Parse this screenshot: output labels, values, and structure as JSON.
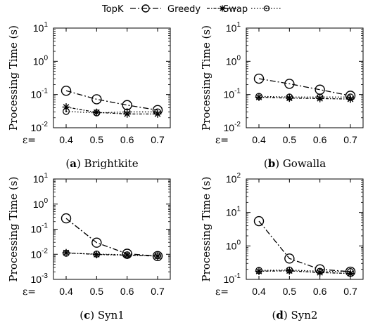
{
  "legend": [
    {
      "name": "TopK",
      "marker": "circle-icon",
      "dash": "dashdot"
    },
    {
      "name": "Greedy",
      "marker": "asterisk-icon",
      "dash": "dotted-dash"
    },
    {
      "name": "Swap",
      "marker": "circle-dot-icon",
      "dash": "dotted"
    }
  ],
  "colors": {
    "line": "#000000",
    "frame": "#000000",
    "grid": "#c8c8c8"
  },
  "chart_data": [
    {
      "type": "line",
      "label": "a",
      "caption": "Brightkite",
      "ylabel": "Processing Time (s)",
      "xlabel": "ε=",
      "categories": [
        "0.4",
        "0.5",
        "0.6",
        "0.7"
      ],
      "yscale": "log",
      "ylim": [
        0.01,
        10
      ],
      "ytick_exponents": [
        "-2",
        "-1",
        "0",
        "1"
      ],
      "series": [
        {
          "name": "TopK",
          "values": [
            0.13,
            0.072,
            0.048,
            0.034
          ]
        },
        {
          "name": "Greedy",
          "values": [
            0.042,
            0.029,
            0.026,
            0.026
          ]
        },
        {
          "name": "Swap",
          "values": [
            0.031,
            0.028,
            0.03,
            0.03
          ]
        }
      ]
    },
    {
      "type": "line",
      "label": "b",
      "caption": "Gowalla",
      "ylabel": "Processing Time (s)",
      "xlabel": "ε=",
      "categories": [
        "0.4",
        "0.5",
        "0.6",
        "0.7"
      ],
      "yscale": "log",
      "ylim": [
        0.01,
        10
      ],
      "ytick_exponents": [
        "-2",
        "-1",
        "0",
        "1"
      ],
      "series": [
        {
          "name": "TopK",
          "values": [
            0.3,
            0.21,
            0.14,
            0.092
          ]
        },
        {
          "name": "Greedy",
          "values": [
            0.083,
            0.078,
            0.076,
            0.073
          ]
        },
        {
          "name": "Swap",
          "values": [
            0.088,
            0.084,
            0.084,
            0.084
          ]
        }
      ]
    },
    {
      "type": "line",
      "label": "c",
      "caption": "Syn1",
      "ylabel": "Processing Time (s)",
      "xlabel": "ε=",
      "categories": [
        "0.4",
        "0.5",
        "0.6",
        "0.7"
      ],
      "yscale": "log",
      "ylim": [
        0.001,
        10
      ],
      "ytick_exponents": [
        "-3",
        "-2",
        "-1",
        "0",
        "1"
      ],
      "series": [
        {
          "name": "TopK",
          "values": [
            0.27,
            0.029,
            0.0105,
            0.0085
          ]
        },
        {
          "name": "Greedy",
          "values": [
            0.0115,
            0.0098,
            0.0092,
            0.0085
          ]
        },
        {
          "name": "Swap",
          "values": [
            0.011,
            0.0102,
            0.0095,
            0.0087
          ]
        }
      ]
    },
    {
      "type": "line",
      "label": "d",
      "caption": "Syn2",
      "ylabel": "Processing Time (s)",
      "xlabel": "ε=",
      "categories": [
        "0.4",
        "0.5",
        "0.6",
        "0.7"
      ],
      "yscale": "log",
      "ylim": [
        0.1,
        100
      ],
      "ytick_exponents": [
        "-1",
        "0",
        "1",
        "2"
      ],
      "series": [
        {
          "name": "TopK",
          "values": [
            5.5,
            0.42,
            0.2,
            0.17
          ]
        },
        {
          "name": "Greedy",
          "values": [
            0.175,
            0.18,
            0.16,
            0.15
          ]
        },
        {
          "name": "Swap",
          "values": [
            0.185,
            0.19,
            0.175,
            0.17
          ]
        }
      ]
    }
  ]
}
